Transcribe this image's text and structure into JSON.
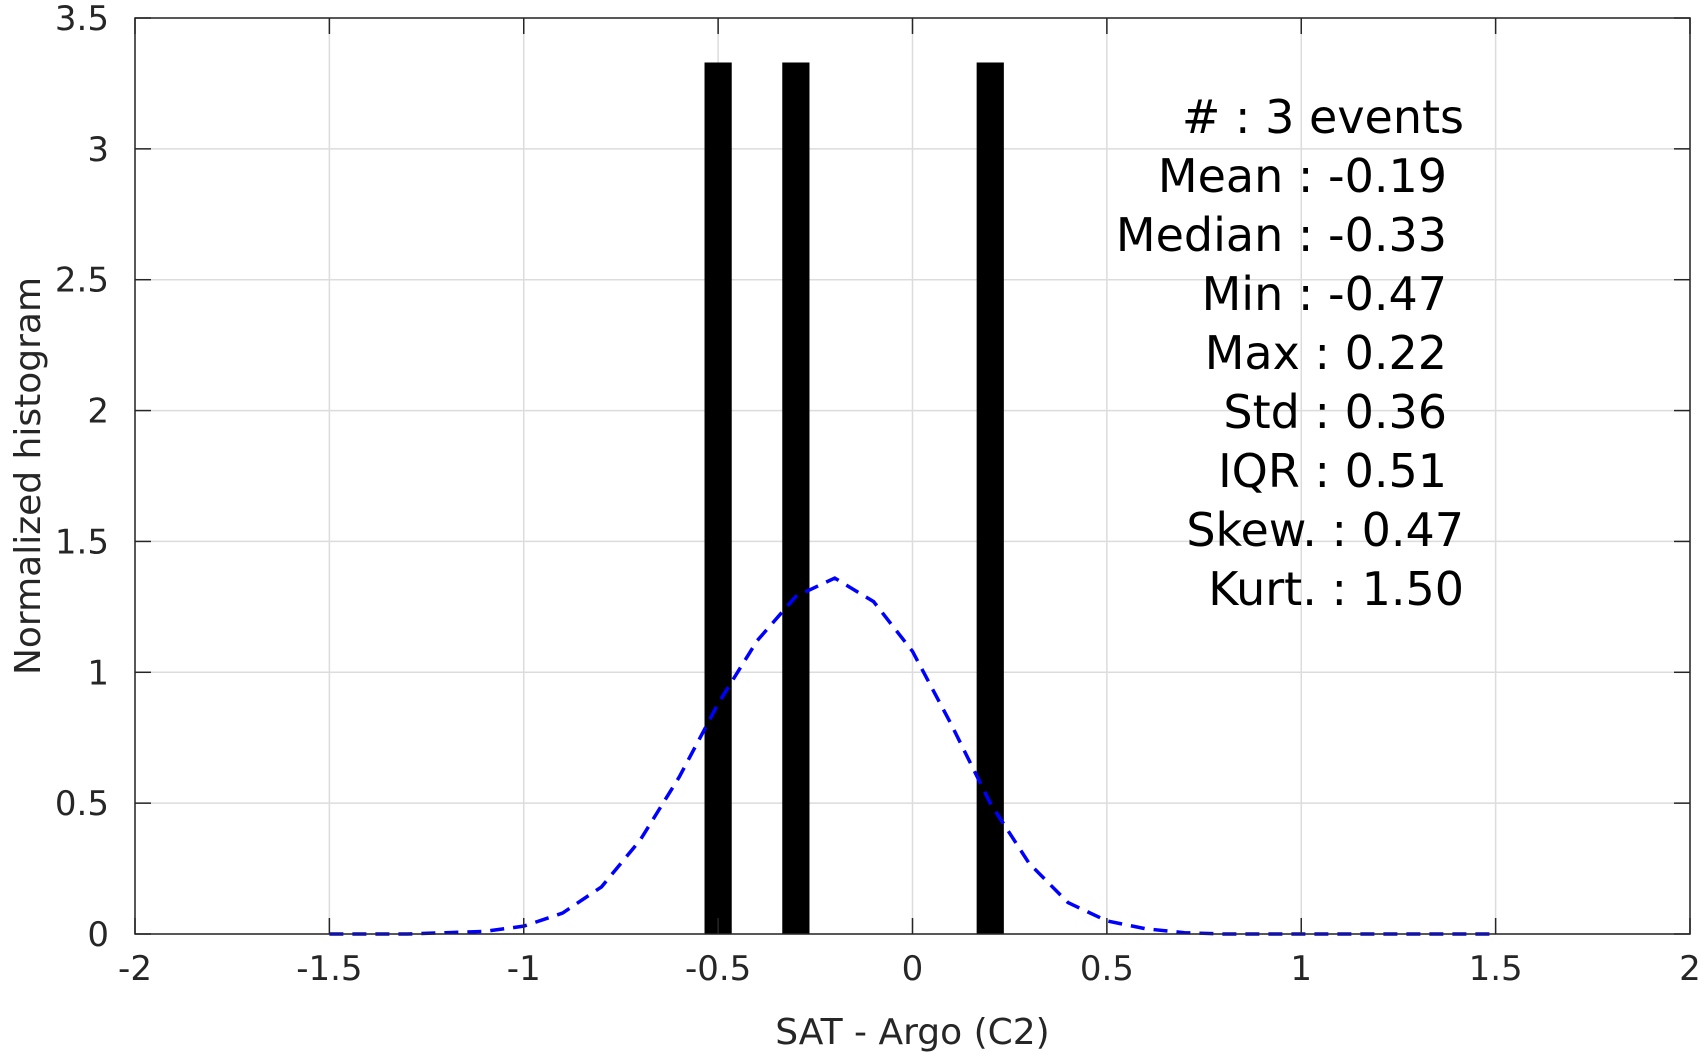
{
  "chart_data": {
    "type": "bar",
    "xlabel": "SAT - Argo (C2)",
    "ylabel": "Normalized histogram",
    "xlim": [
      -2,
      2
    ],
    "ylim": [
      0,
      3.5
    ],
    "x_ticks": [
      -2,
      -1.5,
      -1,
      -0.5,
      0,
      0.5,
      1,
      1.5,
      2
    ],
    "x_tick_labels": [
      "-2",
      "-1.5",
      "-1",
      "-0.5",
      "0",
      "0.5",
      "1",
      "1.5",
      "2"
    ],
    "y_ticks": [
      0,
      0.5,
      1,
      1.5,
      2,
      2.5,
      3,
      3.5
    ],
    "y_tick_labels": [
      "0",
      "0.5",
      "1",
      "1.5",
      "2",
      "2.5",
      "3",
      "3.5"
    ],
    "grid": true,
    "bars": {
      "color": "#000000",
      "x": [
        -0.5,
        -0.3,
        0.2
      ],
      "width": 0.07,
      "values": [
        3.33,
        3.33,
        3.33
      ]
    },
    "fit_curve": {
      "style": "dashed",
      "color": "#0000ff",
      "x": [
        -1.5,
        -1.4,
        -1.3,
        -1.2,
        -1.1,
        -1.0,
        -0.9,
        -0.8,
        -0.7,
        -0.6,
        -0.5,
        -0.4,
        -0.3,
        -0.2,
        -0.1,
        0.0,
        0.1,
        0.2,
        0.3,
        0.4,
        0.5,
        0.6,
        0.7,
        0.8,
        0.9,
        1.0,
        1.1,
        1.2,
        1.3,
        1.4,
        1.5
      ],
      "y": [
        0.0,
        0.0,
        0.0,
        0.005,
        0.01,
        0.03,
        0.08,
        0.18,
        0.36,
        0.6,
        0.88,
        1.12,
        1.29,
        1.36,
        1.27,
        1.08,
        0.8,
        0.5,
        0.27,
        0.12,
        0.05,
        0.02,
        0.005,
        0.0,
        0.0,
        0.0,
        0.0,
        0.0,
        0.0,
        0.0,
        0.0
      ]
    },
    "annotations": [
      "#  : 3 events",
      "Mean : -0.19",
      "Median : -0.33",
      "Min : -0.47",
      "Max : 0.22",
      "Std : 0.36",
      "IQR : 0.51",
      "Skew. : 0.47",
      "Kurt. : 1.50"
    ]
  }
}
